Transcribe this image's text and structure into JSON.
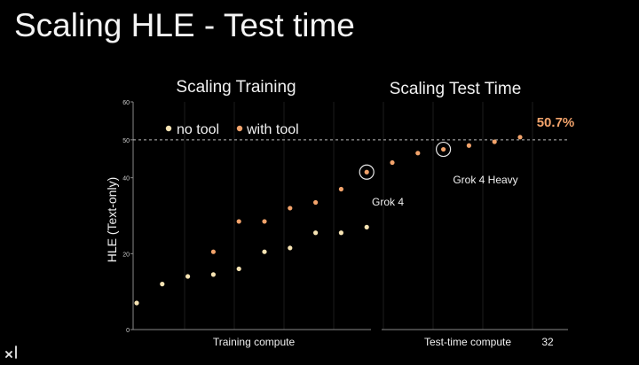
{
  "slide": {
    "title": "Scaling HLE - Test time",
    "logo": "xAI"
  },
  "chart_data": {
    "type": "scatter",
    "ylabel": "HLE (Text-only)",
    "ylim": [
      0,
      60
    ],
    "yticks": [
      0,
      20,
      40,
      50,
      60
    ],
    "reference_line": {
      "y": 50,
      "style": "dashed"
    },
    "grid": "vertical gridlines only",
    "legend": {
      "placement": "top-left",
      "entries": [
        "no tool",
        "with tool"
      ]
    },
    "sections": [
      {
        "label": "Scaling Training",
        "xlabel": "Training compute"
      },
      {
        "label": "Scaling Test Time",
        "xlabel": "Test-time compute",
        "xtick_end": "32"
      }
    ],
    "series": [
      {
        "name": "no tool",
        "color": "#f6e3b3",
        "points": [
          {
            "x": 1,
            "y": 7
          },
          {
            "x": 2,
            "y": 12
          },
          {
            "x": 3,
            "y": 14
          },
          {
            "x": 4,
            "y": 14.5
          },
          {
            "x": 5,
            "y": 16
          },
          {
            "x": 6,
            "y": 20.5
          },
          {
            "x": 7,
            "y": 21.5
          },
          {
            "x": 8,
            "y": 25.5
          },
          {
            "x": 9,
            "y": 25.5
          },
          {
            "x": 10,
            "y": 27
          }
        ]
      },
      {
        "name": "with tool",
        "color": "#f2a36b",
        "points": [
          {
            "x": 4,
            "y": 20.5
          },
          {
            "x": 5,
            "y": 28.5
          },
          {
            "x": 6,
            "y": 28.5
          },
          {
            "x": 7,
            "y": 32
          },
          {
            "x": 8,
            "y": 33.5
          },
          {
            "x": 9,
            "y": 37
          },
          {
            "x": 10,
            "y": 41.5
          },
          {
            "x": 11,
            "y": 44
          },
          {
            "x": 12,
            "y": 46.5
          },
          {
            "x": 13,
            "y": 47.5
          },
          {
            "x": 14,
            "y": 48.5
          },
          {
            "x": 15,
            "y": 49.5
          },
          {
            "x": 16,
            "y": 50.7
          }
        ]
      }
    ],
    "annotations": [
      {
        "text": "Grok 4",
        "x": 10,
        "y": 41.5,
        "circled": true
      },
      {
        "text": "Grok 4 Heavy",
        "x": 13,
        "y": 47.5,
        "circled": true
      },
      {
        "text": "50.7%",
        "x": 16,
        "y": 50.7,
        "highlight": true
      }
    ],
    "colors": {
      "background": "#000000",
      "text": "#f0f0f0",
      "grid": "#1c1c1c",
      "axis": "#8a8a8a",
      "highlight": "#f2a36b"
    }
  }
}
